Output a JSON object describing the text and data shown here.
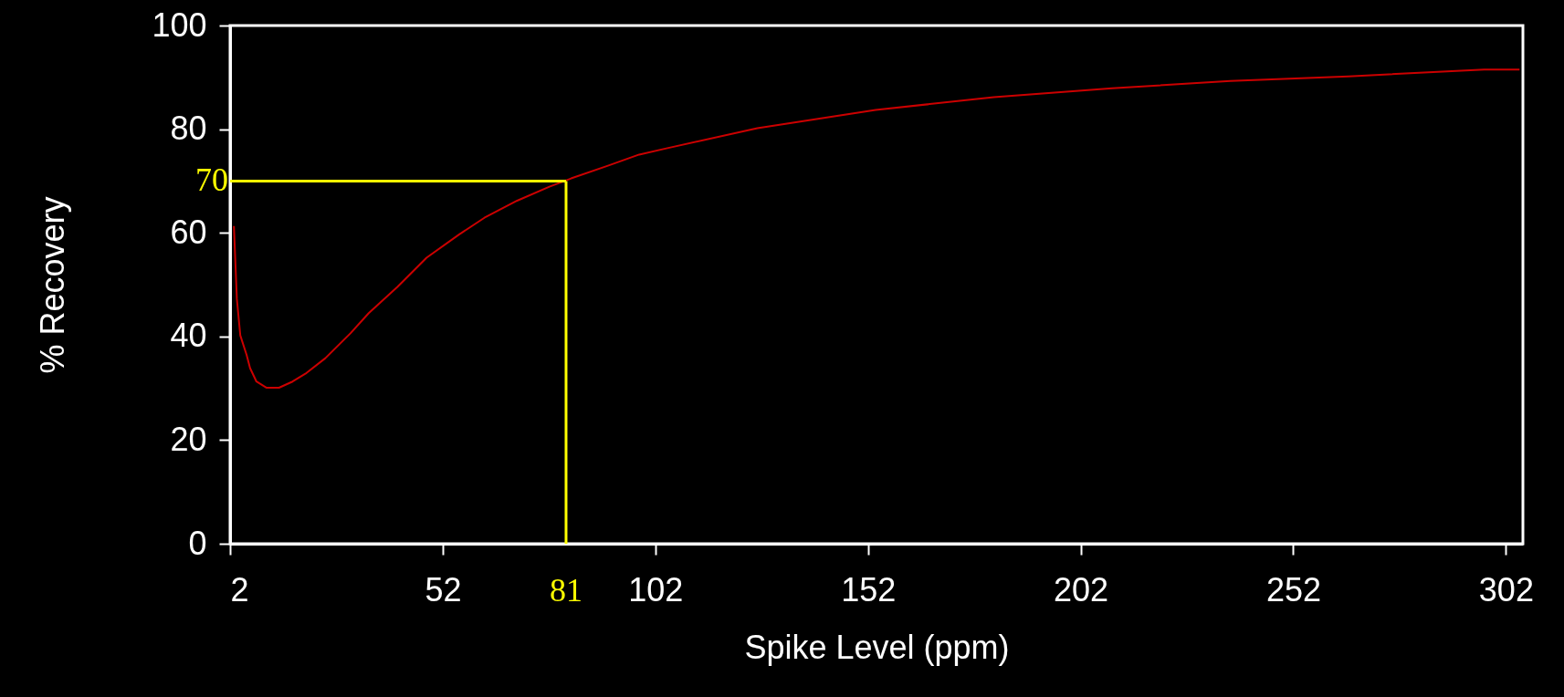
{
  "chart_data": {
    "type": "line",
    "xlabel": "Spike Level (ppm)",
    "ylabel": "% Recovery",
    "xlim": [
      2,
      306
    ],
    "xticks": [
      2,
      52,
      102,
      152,
      202,
      252,
      302
    ],
    "ylim": [
      0,
      100
    ],
    "yticks": [
      0,
      20,
      40,
      60,
      80,
      100
    ],
    "grid": false,
    "marker": "none",
    "line_style": "solid",
    "series": [
      {
        "color": "#cc0000",
        "x": [
          2.9,
          3.6,
          4.4,
          5.9,
          6.7,
          8.2,
          10.6,
          13.5,
          16.7,
          19.7,
          24.4,
          30.3,
          34.6,
          41.4,
          48.2,
          55.9,
          61.8,
          69.5,
          77.1,
          82.2,
          90.7,
          98.2,
          104.6,
          126.0,
          153.8,
          181.6,
          209.4,
          237.2,
          265.0,
          296.9,
          305.2
        ],
        "values": [
          61.3,
          47.2,
          40.2,
          36.4,
          33.9,
          31.3,
          30.1,
          30.1,
          31.3,
          32.8,
          35.8,
          40.6,
          44.5,
          49.6,
          55.2,
          59.7,
          62.9,
          66.2,
          68.9,
          70.5,
          72.9,
          75.1,
          76.3,
          80.2,
          83.7,
          86.2,
          87.9,
          89.3,
          90.2,
          91.5,
          91.5
        ]
      }
    ],
    "ref_lines": [
      {
        "axis": "y",
        "value": 70,
        "label": "70",
        "color": "#ffff00"
      },
      {
        "axis": "x",
        "value": 81,
        "label": "81",
        "color": "#ffff00"
      }
    ]
  }
}
